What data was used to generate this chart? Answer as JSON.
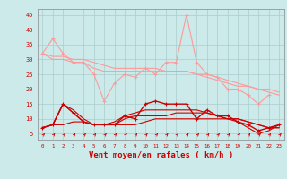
{
  "background_color": "#cceaea",
  "grid_color": "#aacccc",
  "xlabel": "Vent moyen/en rafales ( km/h )",
  "xlabel_color": "#cc0000",
  "ylabel_ticks": [
    5,
    10,
    15,
    20,
    25,
    30,
    35,
    40,
    45
  ],
  "xlim": [
    -0.5,
    23.5
  ],
  "ylim": [
    3,
    47
  ],
  "x": [
    0,
    1,
    2,
    3,
    4,
    5,
    6,
    7,
    8,
    9,
    10,
    11,
    12,
    13,
    14,
    15,
    16,
    17,
    18,
    19,
    20,
    21,
    22,
    23
  ],
  "series_light": [
    [
      32,
      37,
      32,
      29,
      29,
      25,
      16,
      22,
      25,
      24,
      27,
      25,
      29,
      29,
      45,
      29,
      25,
      24,
      20,
      20,
      18,
      15,
      18,
      null
    ],
    [
      32,
      30,
      30,
      29,
      29,
      27,
      26,
      26,
      26,
      26,
      26,
      26,
      26,
      26,
      26,
      25,
      25,
      24,
      23,
      22,
      21,
      20,
      19,
      18
    ],
    [
      32,
      31,
      31,
      30,
      30,
      29,
      28,
      27,
      27,
      27,
      27,
      27,
      26,
      26,
      26,
      25,
      24,
      23,
      22,
      21,
      21,
      20,
      20,
      19
    ]
  ],
  "series_dark": [
    [
      7,
      8,
      15,
      12,
      9,
      8,
      8,
      8,
      11,
      10,
      15,
      16,
      15,
      15,
      15,
      10,
      13,
      11,
      11,
      9,
      8,
      6,
      7,
      8
    ],
    [
      7,
      8,
      15,
      12,
      9,
      8,
      8,
      8,
      10,
      11,
      11,
      11,
      11,
      12,
      12,
      12,
      12,
      11,
      10,
      10,
      9,
      8,
      7,
      7
    ],
    [
      7,
      8,
      15,
      13,
      10,
      8,
      8,
      9,
      11,
      12,
      13,
      13,
      13,
      13,
      13,
      13,
      12,
      11,
      10,
      10,
      9,
      8,
      7,
      7
    ],
    [
      7,
      8,
      8,
      9,
      9,
      8,
      8,
      8,
      8,
      8,
      9,
      10,
      10,
      10,
      10,
      10,
      10,
      10,
      10,
      9,
      7,
      5,
      6,
      8
    ]
  ],
  "light_color": "#ff9999",
  "dark_color": "#cc0000",
  "arrow_color": "#cc0000"
}
